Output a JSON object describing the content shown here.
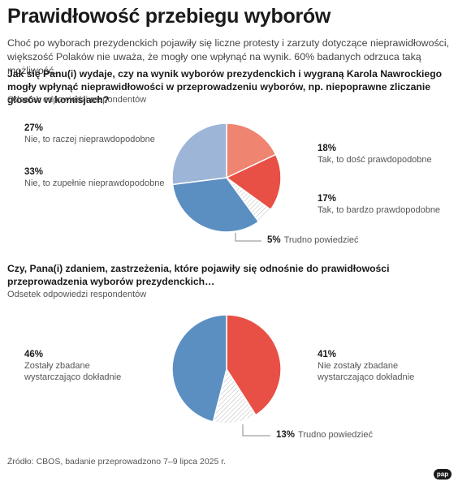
{
  "header": {
    "title": "Prawidłowość przebiegu wyborów",
    "lead": "Choć po wyborach prezydenckich pojawiły się liczne protesty i zarzuty dotyczące nieprawidłowości, większość Polaków nie uważa, że mogły one wpłynąć na wynik. 60% badanych odrzuca taką możliwość."
  },
  "chart_data": [
    {
      "type": "pie",
      "title": "Jak się Panu(i) wydaje, czy na wynik wyborów prezydenckich i wygraną Karola Nawrockiego mogły wpłynąć nieprawidłowości w przeprowadzeniu wyborów, np. niepoprawne zliczanie głosów w komisjach?",
      "subtitle": "Odsetek odpowiedzi respondentów",
      "slices": [
        {
          "label": "Tak, to dość prawdopodobne",
          "pct_label": "18%",
          "value": 18,
          "color": "#ef8470"
        },
        {
          "label": "Tak, to bardzo prawdopodobne",
          "pct_label": "17%",
          "value": 17,
          "color": "#e84f45"
        },
        {
          "label": "Trudno powiedzieć",
          "pct_label": "5%",
          "value": 5,
          "color": "#ffffff",
          "hatched": true
        },
        {
          "label": "Nie, to zupełnie nieprawdopodobne",
          "pct_label": "33%",
          "value": 33,
          "color": "#5b8fc2"
        },
        {
          "label": "Nie, to raczej nieprawdopodobne",
          "pct_label": "27%",
          "value": 27,
          "color": "#9db5d7"
        }
      ]
    },
    {
      "type": "pie",
      "title": "Czy, Pana(i) zdaniem, zastrzeżenia, które pojawiły się odnośnie do prawidłowości przeprowadzenia wyborów prezydenckich…",
      "subtitle": "Odsetek odpowiedzi respondentów",
      "slices": [
        {
          "label": "Nie zostały zbadane wystarczająco dokładnie",
          "pct_label": "41%",
          "value": 41,
          "color": "#e84f45"
        },
        {
          "label": "Trudno powiedzieć",
          "pct_label": "13%",
          "value": 13,
          "color": "#ffffff",
          "hatched": true
        },
        {
          "label": "Zostały zbadane wystarczająco dokładnie",
          "pct_label": "46%",
          "value": 46,
          "color": "#5b8fc2"
        }
      ]
    }
  ],
  "footer": {
    "source": "Źródło: CBOS, badanie przeprowadzono 7–9 lipca 2025 r.",
    "logo": "pap"
  }
}
